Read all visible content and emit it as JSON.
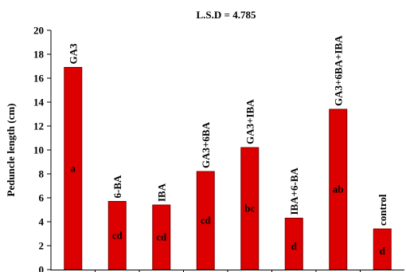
{
  "chart_data": {
    "type": "bar",
    "annotation": "L.S.D = 4.785",
    "ylabel": "Peduncle length (cm)",
    "ylim": [
      0,
      20
    ],
    "yticks": [
      0,
      2,
      4,
      6,
      8,
      10,
      12,
      14,
      16,
      18,
      20
    ],
    "categories": [
      "GA3",
      "6-BA",
      "IBA",
      "GA3+6BA",
      "GA3+IBA",
      "IBA+6-BA",
      "GA3+6BA+IBA",
      "control"
    ],
    "values": [
      16.9,
      5.7,
      5.4,
      8.2,
      10.2,
      4.3,
      13.4,
      3.4
    ],
    "significance_letters": [
      "a",
      "cd",
      "cd",
      "cd",
      "bc",
      "d",
      "ab",
      "d"
    ],
    "bar_color": "#dd0000",
    "bar_edge_color": "#800000",
    "grid": false,
    "legend": "none"
  }
}
